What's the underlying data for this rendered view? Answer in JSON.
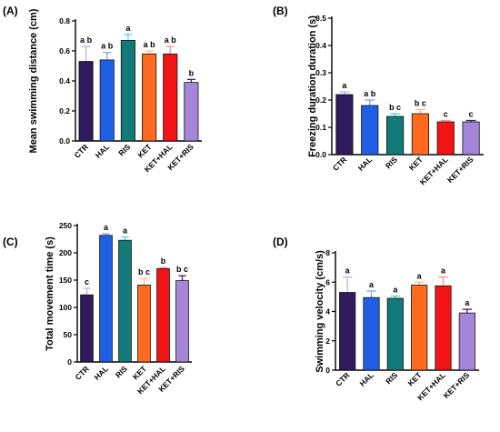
{
  "figure": {
    "colors": {
      "CTR": "#2E1A5C",
      "HAL": "#1F5FE6",
      "RIS": "#127A79",
      "KET": "#FF6A1F",
      "KET+HAL": "#F21414",
      "KET+RIS": "#A585DA"
    },
    "error_colors": {
      "CTR": "#B8B2E6",
      "HAL": "#7FA8F4",
      "RIS": "#55D6CF",
      "KET": "#FFB88F",
      "KET+HAL": "#FF8C8C",
      "KET+RIS": "#3B2466"
    }
  },
  "chart_data": [
    {
      "panel": "(A)",
      "type": "bar",
      "categories": [
        "CTR",
        "HAL",
        "RIS",
        "KET",
        "KET+HAL",
        "KET+RIS"
      ],
      "values": [
        0.53,
        0.54,
        0.67,
        0.58,
        0.58,
        0.39
      ],
      "errors": [
        0.1,
        0.05,
        0.04,
        0.02,
        0.05,
        0.02
      ],
      "labels": [
        "a b",
        "a b",
        "a",
        "a b",
        "a b",
        "b"
      ],
      "ylabel": "Mean swimming distance (cm)",
      "ylim": [
        0,
        0.8
      ],
      "yticks": [
        "0.0",
        "0.2",
        "0.4",
        "0.6",
        "0.8"
      ],
      "ytick_values": [
        0,
        0.2,
        0.4,
        0.6,
        0.8
      ]
    },
    {
      "panel": "(B)",
      "type": "bar",
      "categories": [
        "CTR",
        "HAL",
        "RIS",
        "KET",
        "KET+HAL",
        "KET+RIS"
      ],
      "values": [
        0.22,
        0.18,
        0.14,
        0.15,
        0.12,
        0.12
      ],
      "errors": [
        0.01,
        0.02,
        0.01,
        0.015,
        0.005,
        0.005
      ],
      "labels": [
        "a",
        "a b",
        "b c",
        "b c",
        "c",
        "c"
      ],
      "ylabel": "Freezing duration duration (s)",
      "ylim": [
        0,
        0.5
      ],
      "yticks": [
        "0.0",
        "0.1",
        "0.2",
        "0.3",
        "0.4",
        "0.5"
      ],
      "ytick_values": [
        0,
        0.1,
        0.2,
        0.3,
        0.4,
        0.5
      ]
    },
    {
      "panel": "(C)",
      "type": "bar",
      "categories": [
        "CTR",
        "HAL",
        "RIS",
        "KET",
        "KET+HAL",
        "KET+RIS"
      ],
      "values": [
        123,
        232,
        223,
        141,
        171,
        149
      ],
      "errors": [
        12,
        3,
        6,
        12,
        2,
        9
      ],
      "labels": [
        "c",
        "a",
        "a",
        "b c",
        "b",
        "b c"
      ],
      "ylabel": "Total movement time (s)",
      "ylim": [
        0,
        250
      ],
      "yticks": [
        "0",
        "50",
        "100",
        "150",
        "200",
        "250"
      ],
      "ytick_values": [
        0,
        50,
        100,
        150,
        200,
        250
      ]
    },
    {
      "panel": "(D)",
      "type": "bar",
      "categories": [
        "CTR",
        "HAL",
        "RIS",
        "KET",
        "KET+HAL",
        "KET+RIS"
      ],
      "values": [
        5.3,
        4.95,
        4.9,
        5.8,
        5.75,
        3.9
      ],
      "errors": [
        1.05,
        0.45,
        0.15,
        0.2,
        0.6,
        0.25
      ],
      "labels": [
        "a",
        "a",
        "a",
        "a",
        "a",
        "a"
      ],
      "ylabel": "Swimming velocity (cm/s)",
      "ylim": [
        0,
        8
      ],
      "yticks": [
        "0",
        "2",
        "4",
        "6",
        "8"
      ],
      "ytick_values": [
        0,
        2,
        4,
        6,
        8
      ]
    }
  ]
}
